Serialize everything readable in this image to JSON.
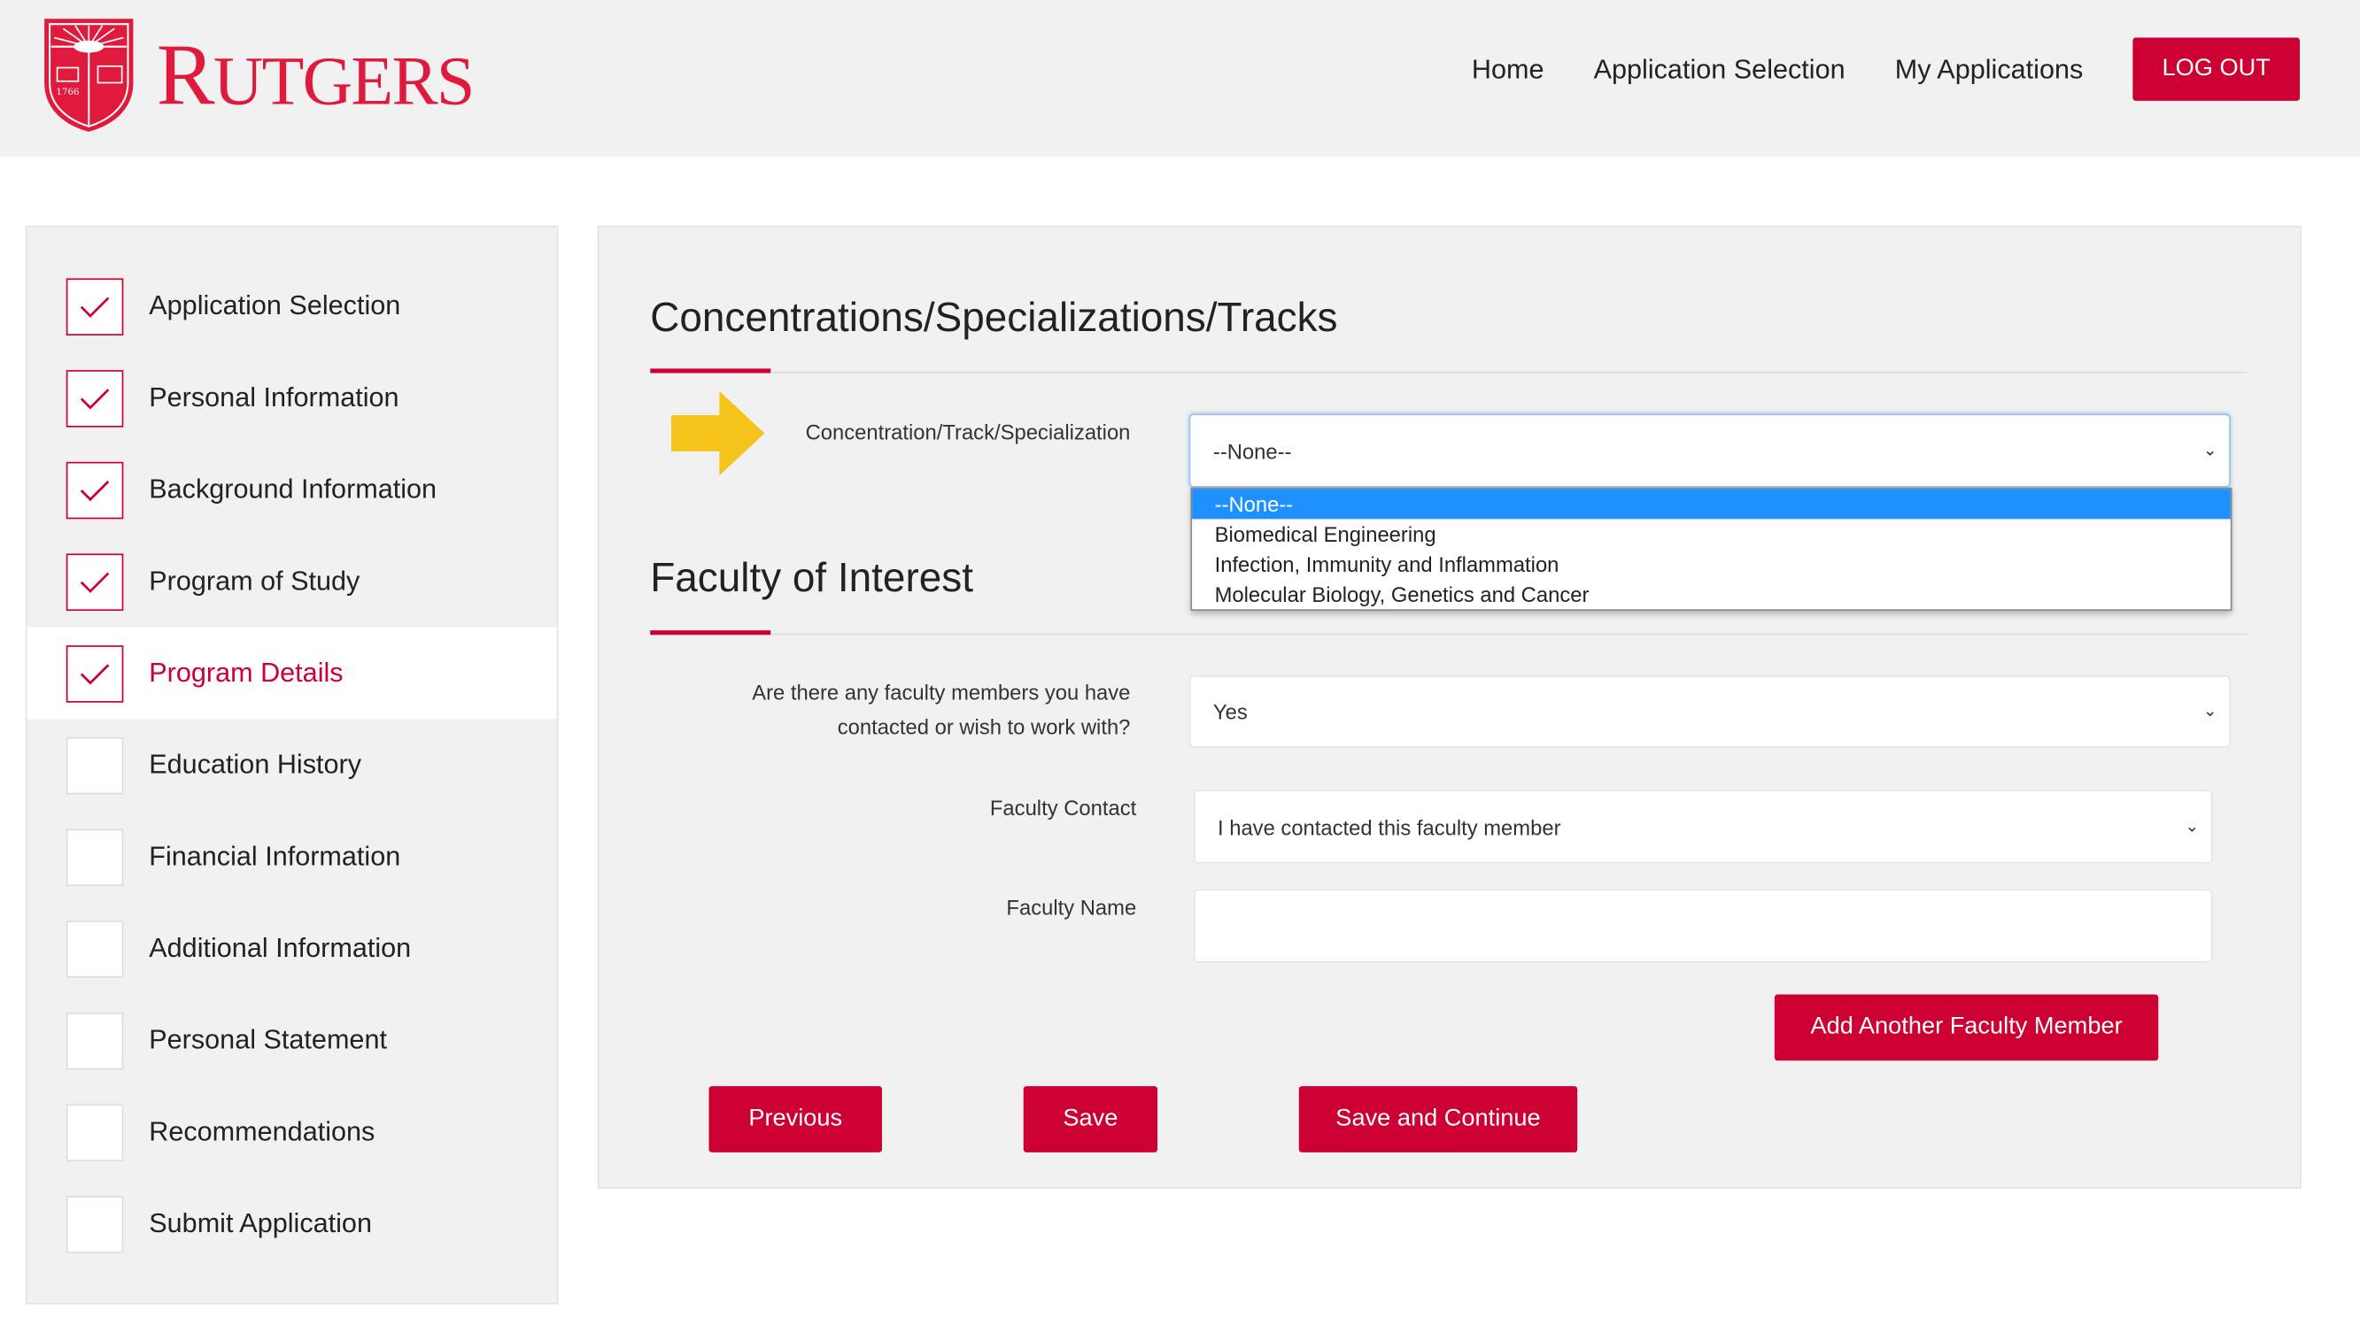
{
  "brand": {
    "name": "RUTGERS",
    "year": "1766",
    "color": "#cc0033"
  },
  "nav": {
    "items": [
      "Home",
      "Application Selection",
      "My Applications"
    ],
    "logout": "LOG OUT"
  },
  "sidebar": {
    "steps": [
      {
        "label": "Application Selection",
        "done": true
      },
      {
        "label": "Personal Information",
        "done": true
      },
      {
        "label": "Background Information",
        "done": true
      },
      {
        "label": "Program of Study",
        "done": true
      },
      {
        "label": "Program Details",
        "done": true,
        "active": true
      },
      {
        "label": "Education History",
        "done": false
      },
      {
        "label": "Financial Information",
        "done": false
      },
      {
        "label": "Additional Information",
        "done": false
      },
      {
        "label": "Personal Statement",
        "done": false
      },
      {
        "label": "Recommendations",
        "done": false
      },
      {
        "label": "Submit Application",
        "done": false
      }
    ]
  },
  "concentrations": {
    "title": "Concentrations/Specializations/Tracks",
    "field_label": "Concentration/Track/Specialization",
    "value": "--None--",
    "options": [
      "--None--",
      "Biomedical Engineering",
      "Infection, Immunity and Inflammation",
      "Molecular Biology, Genetics and Cancer"
    ],
    "highlighted": "--None--"
  },
  "faculty": {
    "title": "Faculty of Interest",
    "q_label": "Are there any faculty members you have contacted or wish to work with?",
    "q_value": "Yes",
    "contact_label": "Faculty Contact",
    "contact_value": "I have contacted this faculty member",
    "name_label": "Faculty Name",
    "name_value": "",
    "add_button": "Add Another Faculty Member"
  },
  "actions": {
    "previous": "Previous",
    "save": "Save",
    "save_continue": "Save and Continue"
  }
}
